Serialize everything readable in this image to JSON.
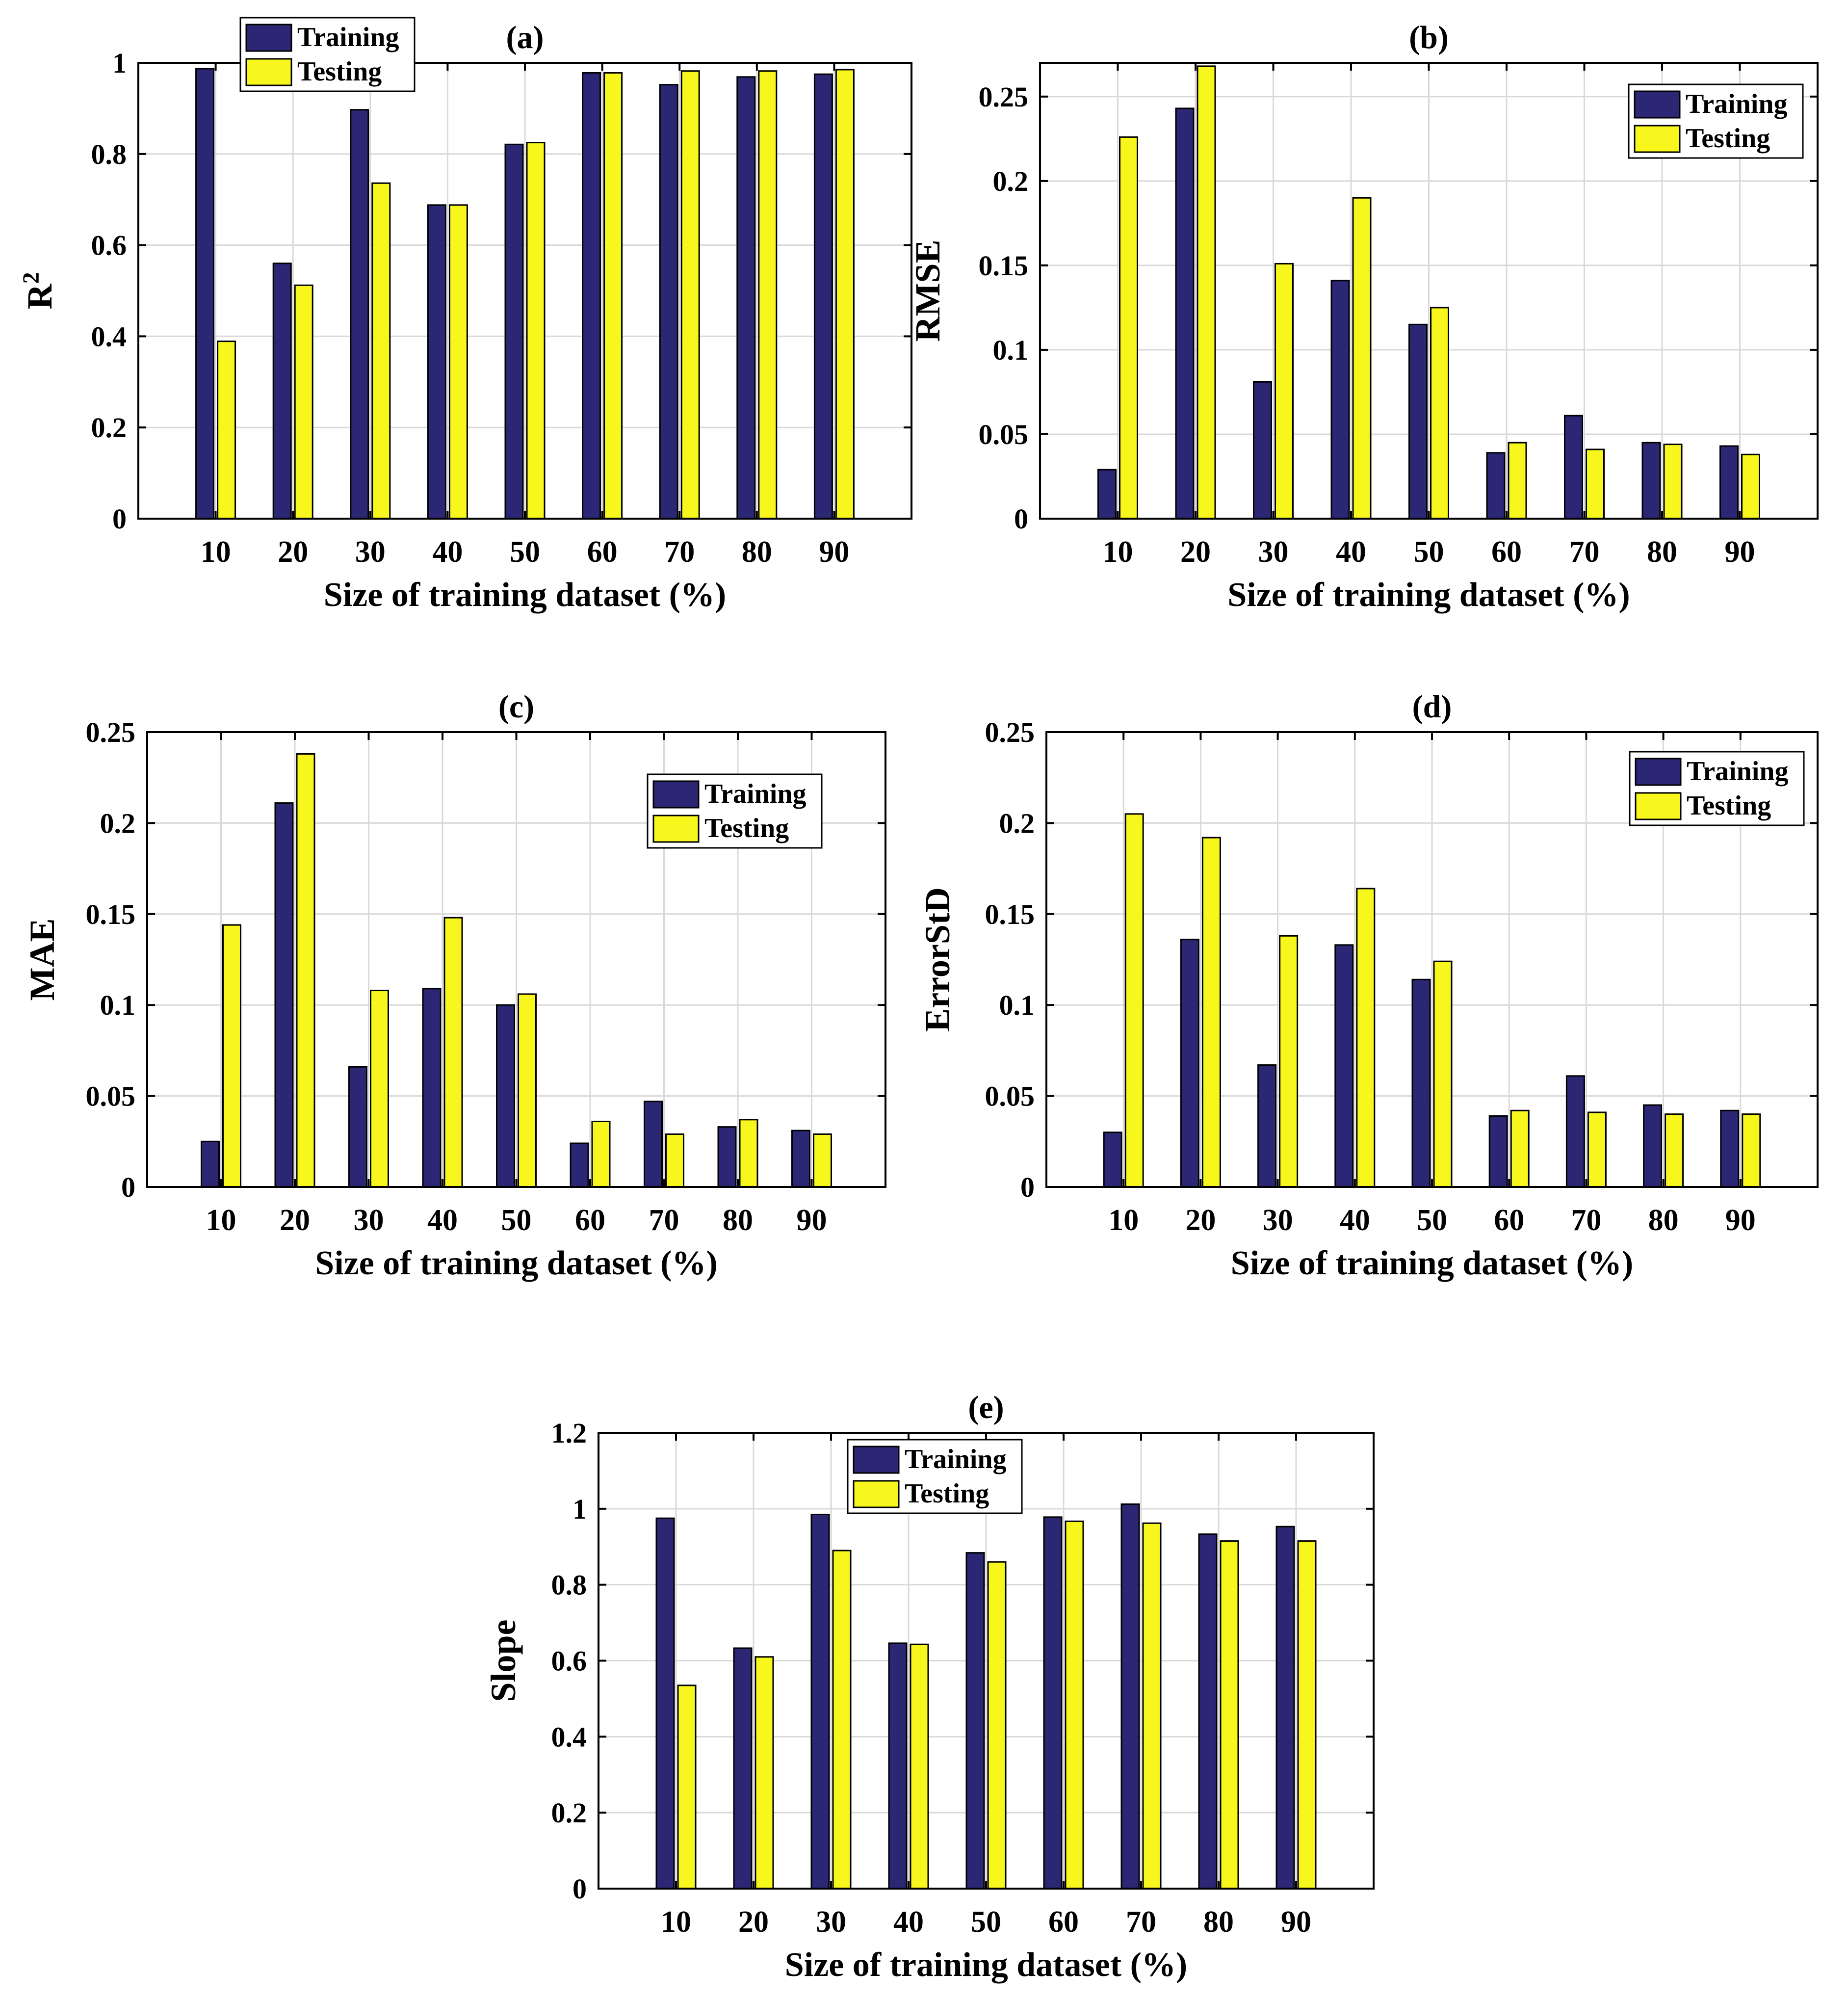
{
  "colors": {
    "training": "#2b2775",
    "testing": "#f7f71e",
    "grid": "#d9d9d9",
    "axis": "#000000"
  },
  "chart_data": [
    {
      "type": "bar",
      "title": "(a)",
      "xlabel": "Size of training dataset (%)",
      "ylabel": "R",
      "ylabel_sup": "2",
      "categories": [
        "10",
        "20",
        "30",
        "40",
        "50",
        "60",
        "70",
        "80",
        "90"
      ],
      "ylim": [
        0,
        1
      ],
      "yticks": [
        0,
        0.2,
        0.4,
        0.6,
        0.8,
        1
      ],
      "ytick_labels": [
        "0",
        "0.2",
        "0.4",
        "0.6",
        "0.8",
        "1"
      ],
      "legend_position": "top-left",
      "series": [
        {
          "name": "Training",
          "values": [
            0.987,
            0.56,
            0.897,
            0.688,
            0.821,
            0.978,
            0.952,
            0.969,
            0.975
          ]
        },
        {
          "name": "Testing",
          "values": [
            0.389,
            0.512,
            0.736,
            0.688,
            0.825,
            0.978,
            0.982,
            0.982,
            0.985
          ]
        }
      ]
    },
    {
      "type": "bar",
      "title": "(b)",
      "xlabel": "Size of training dataset (%)",
      "ylabel": "RMSE",
      "categories": [
        "10",
        "20",
        "30",
        "40",
        "50",
        "60",
        "70",
        "80",
        "90"
      ],
      "ylim": [
        0,
        0.27
      ],
      "yticks": [
        0,
        0.05,
        0.1,
        0.15,
        0.2,
        0.25
      ],
      "ytick_labels": [
        "0",
        "0.05",
        "0.1",
        "0.15",
        "0.2",
        "0.25"
      ],
      "legend_position": "top-right",
      "series": [
        {
          "name": "Training",
          "values": [
            0.029,
            0.243,
            0.081,
            0.141,
            0.115,
            0.039,
            0.061,
            0.045,
            0.043
          ]
        },
        {
          "name": "Testing",
          "values": [
            0.226,
            0.268,
            0.151,
            0.19,
            0.125,
            0.045,
            0.041,
            0.044,
            0.038
          ]
        }
      ]
    },
    {
      "type": "bar",
      "title": "(c)",
      "xlabel": "Size of training dataset (%)",
      "ylabel": "MAE",
      "categories": [
        "10",
        "20",
        "30",
        "40",
        "50",
        "60",
        "70",
        "80",
        "90"
      ],
      "ylim": [
        0,
        0.25
      ],
      "yticks": [
        0,
        0.05,
        0.1,
        0.15,
        0.2,
        0.25
      ],
      "ytick_labels": [
        "0",
        "0.05",
        "0.1",
        "0.15",
        "0.2",
        "0.25"
      ],
      "legend_position": "top-right",
      "series": [
        {
          "name": "Training",
          "values": [
            0.025,
            0.211,
            0.066,
            0.109,
            0.1,
            0.024,
            0.047,
            0.033,
            0.031
          ]
        },
        {
          "name": "Testing",
          "values": [
            0.144,
            0.238,
            0.108,
            0.148,
            0.106,
            0.036,
            0.029,
            0.037,
            0.029
          ]
        }
      ]
    },
    {
      "type": "bar",
      "title": "(d)",
      "xlabel": "Size of training dataset (%)",
      "ylabel": "ErrorStD",
      "categories": [
        "10",
        "20",
        "30",
        "40",
        "50",
        "60",
        "70",
        "80",
        "90"
      ],
      "ylim": [
        0,
        0.25
      ],
      "yticks": [
        0,
        0.05,
        0.1,
        0.15,
        0.2,
        0.25
      ],
      "ytick_labels": [
        "0",
        "0.05",
        "0.1",
        "0.15",
        "0.2",
        "0.25"
      ],
      "legend_position": "top-right",
      "series": [
        {
          "name": "Training",
          "values": [
            0.03,
            0.136,
            0.067,
            0.133,
            0.114,
            0.039,
            0.061,
            0.045,
            0.042
          ]
        },
        {
          "name": "Testing",
          "values": [
            0.205,
            0.192,
            0.138,
            0.164,
            0.124,
            0.042,
            0.041,
            0.04,
            0.04
          ]
        }
      ]
    },
    {
      "type": "bar",
      "title": "(e)",
      "xlabel": "Size of training dataset (%)",
      "ylabel": "Slope",
      "categories": [
        "10",
        "20",
        "30",
        "40",
        "50",
        "60",
        "70",
        "80",
        "90"
      ],
      "ylim": [
        0,
        1.2
      ],
      "yticks": [
        0,
        0.2,
        0.4,
        0.6,
        0.8,
        1,
        1.2
      ],
      "ytick_labels": [
        "0",
        "0.2",
        "0.4",
        "0.6",
        "0.8",
        "1",
        "1.2"
      ],
      "legend_position": "top-left",
      "series": [
        {
          "name": "Training",
          "values": [
            0.975,
            0.633,
            0.985,
            0.646,
            0.884,
            0.978,
            1.012,
            0.933,
            0.953
          ]
        },
        {
          "name": "Testing",
          "values": [
            0.535,
            0.61,
            0.89,
            0.643,
            0.86,
            0.967,
            0.962,
            0.915,
            0.915
          ]
        }
      ]
    }
  ]
}
